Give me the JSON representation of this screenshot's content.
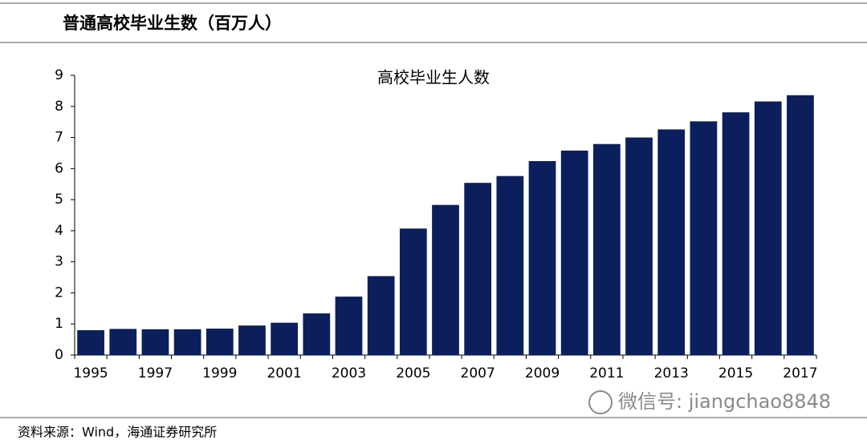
{
  "header": {
    "title": "普通高校毕业生数（百万人）"
  },
  "chart_data": {
    "type": "bar",
    "title": "高校毕业生人数",
    "categories": [
      "1995",
      null,
      "1997",
      null,
      "1999",
      null,
      "2001",
      null,
      "2003",
      null,
      "2005",
      null,
      "2007",
      null,
      "2009",
      null,
      "2011",
      null,
      "2013",
      null,
      "2015",
      null,
      "2017"
    ],
    "values": [
      0.8,
      0.84,
      0.83,
      0.83,
      0.85,
      0.95,
      1.04,
      1.34,
      1.88,
      2.54,
      4.07,
      4.83,
      5.54,
      5.76,
      6.24,
      6.58,
      6.79,
      7.0,
      7.26,
      7.52,
      7.81,
      8.16,
      8.36
    ],
    "color": "#0b1f5c",
    "ylim": [
      0,
      9
    ],
    "yticks": [
      0,
      1,
      2,
      3,
      4,
      5,
      6,
      7,
      8,
      9
    ],
    "grid": false
  },
  "watermark": "微信号: jiangchao8848",
  "footer": {
    "source": "资料来源：Wind，海通证券研究所"
  }
}
